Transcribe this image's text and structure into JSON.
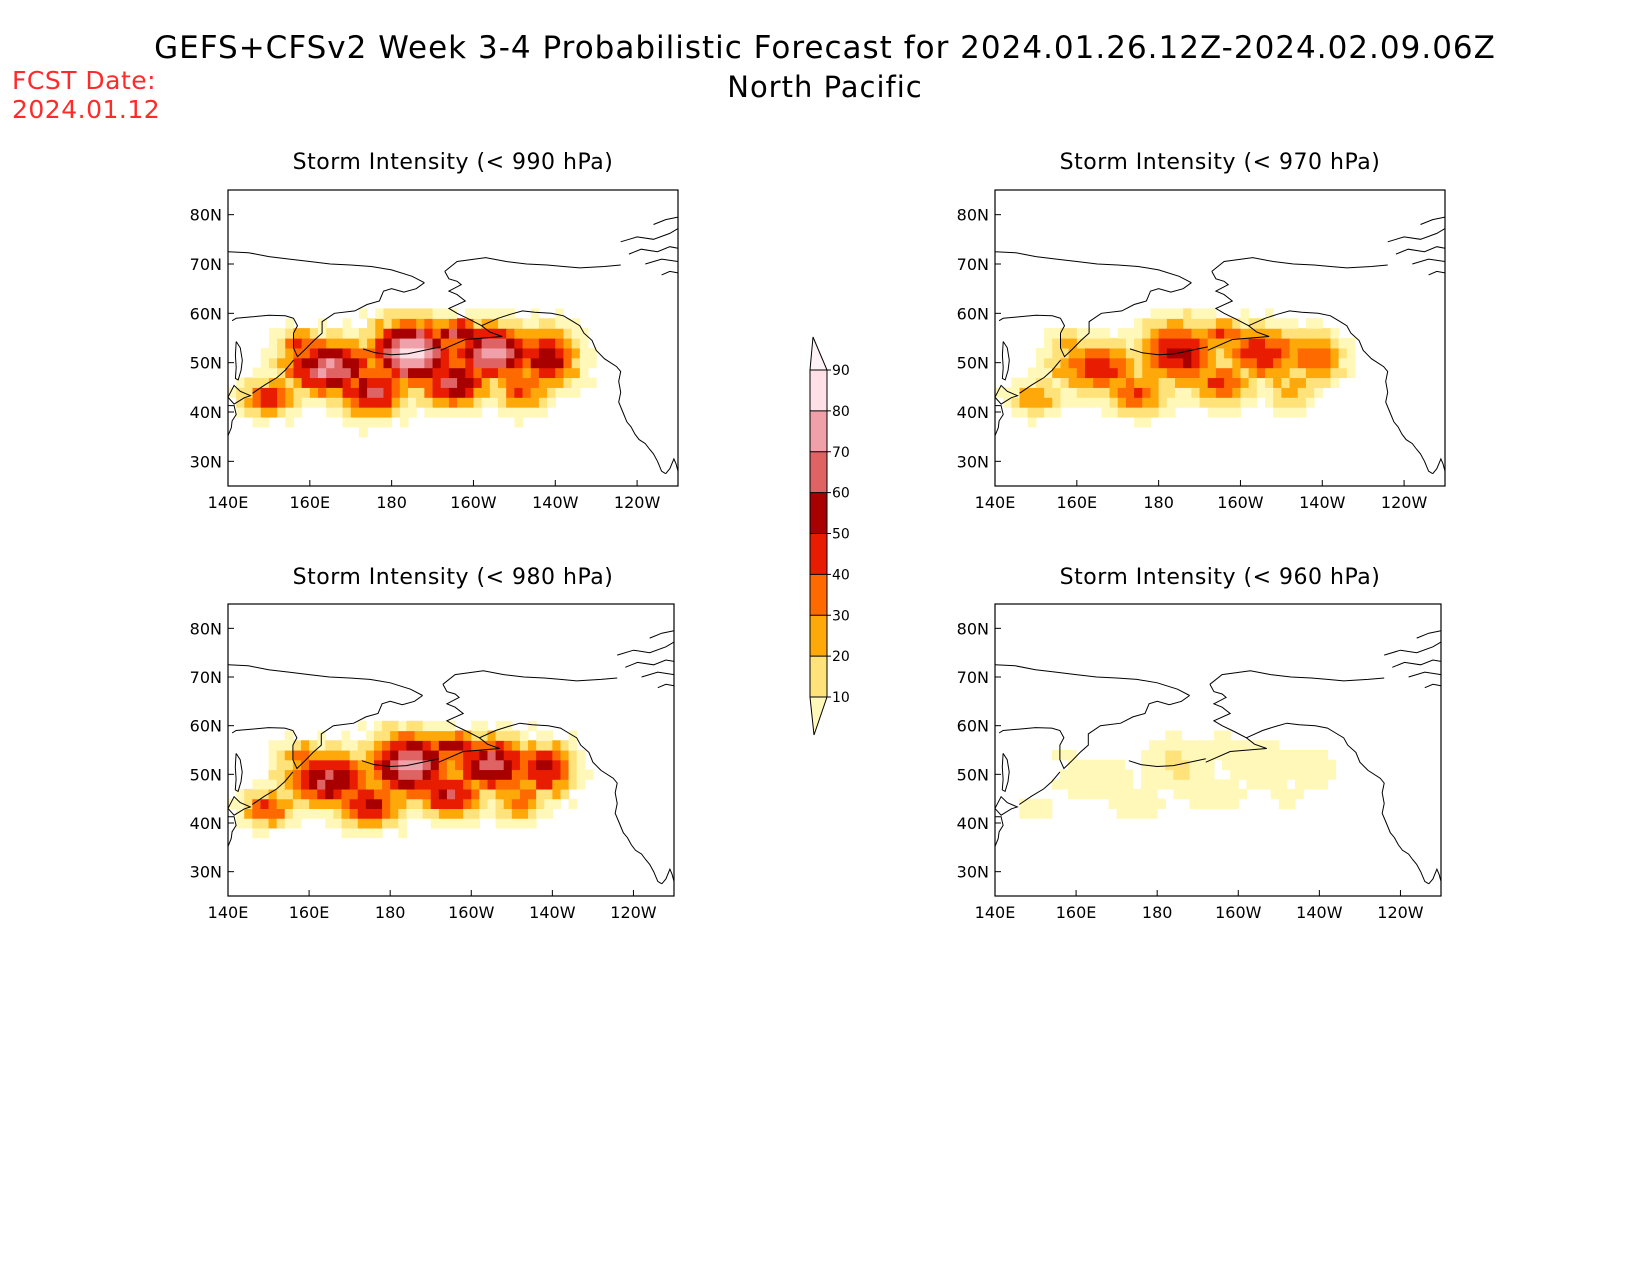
{
  "header": {
    "title": "GEFS+CFSv2 Week 3-4 Probabilistic Forecast for 2024.01.26.12Z-2024.02.09.06Z",
    "region": "North Pacific",
    "fcst_label": "FCST Date:",
    "fcst_date": "2024.01.12"
  },
  "axes": {
    "lon_ticks": [
      "140E",
      "160E",
      "180",
      "160W",
      "140W",
      "120W"
    ],
    "lat_ticks": [
      "80N",
      "70N",
      "60N",
      "50N",
      "40N",
      "30N"
    ],
    "lon_range": [
      140,
      250
    ],
    "lat_range": [
      25,
      85
    ]
  },
  "colorbar": {
    "levels": [
      10,
      20,
      30,
      40,
      50,
      60,
      70,
      80,
      90
    ],
    "colors": [
      "#fff8b8",
      "#ffe27a",
      "#ffa80a",
      "#ff6a00",
      "#e81c00",
      "#a80000",
      "#e06363",
      "#f0a0a8",
      "#ffe0e6",
      "#fff2f6"
    ]
  },
  "panels": [
    {
      "title": "Storm Intensity (< 990 hPa)",
      "max_prob": 95
    },
    {
      "title": "Storm Intensity (< 970 hPa)",
      "max_prob": 65
    },
    {
      "title": "Storm Intensity (< 980 hPa)",
      "max_prob": 85
    },
    {
      "title": "Storm Intensity (< 960 hPa)",
      "max_prob": 22
    }
  ]
}
